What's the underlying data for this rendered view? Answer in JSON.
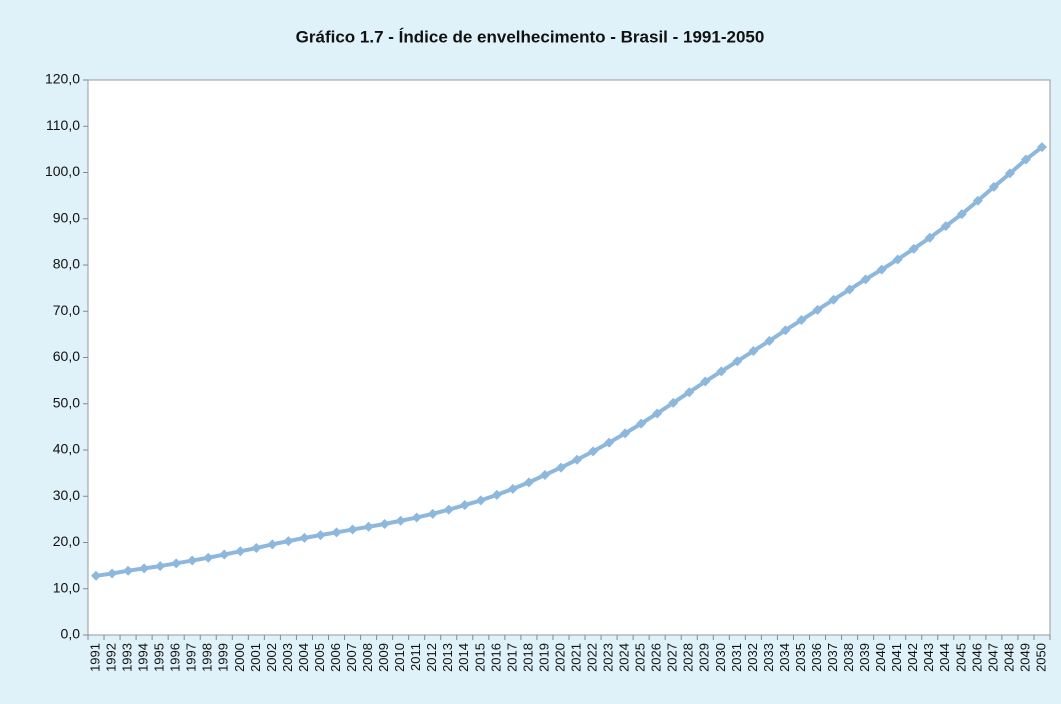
{
  "chart_data": {
    "type": "line",
    "title": "Gráfico 1.7 - Índice de envelhecimento - Brasil - 1991-2050",
    "categories": [
      "1991",
      "1992",
      "1993",
      "1994",
      "1995",
      "1996",
      "1997",
      "1998",
      "1999",
      "2000",
      "2001",
      "2002",
      "2003",
      "2004",
      "2005",
      "2006",
      "2007",
      "2008",
      "2009",
      "2010",
      "2011",
      "2012",
      "2013",
      "2014",
      "2015",
      "2016",
      "2017",
      "2018",
      "2019",
      "2020",
      "2021",
      "2022",
      "2023",
      "2024",
      "2025",
      "2026",
      "2027",
      "2028",
      "2029",
      "2030",
      "2031",
      "2032",
      "2033",
      "2034",
      "2035",
      "2036",
      "2037",
      "2038",
      "2039",
      "2040",
      "2041",
      "2042",
      "2043",
      "2044",
      "2045",
      "2046",
      "2047",
      "2048",
      "2049",
      "2050"
    ],
    "values": [
      12.8,
      13.3,
      13.9,
      14.4,
      14.9,
      15.5,
      16.1,
      16.7,
      17.4,
      18.1,
      18.8,
      19.6,
      20.3,
      21.0,
      21.6,
      22.2,
      22.8,
      23.4,
      24.0,
      24.7,
      25.4,
      26.2,
      27.1,
      28.1,
      29.1,
      30.3,
      31.6,
      33.0,
      34.6,
      36.2,
      37.9,
      39.7,
      41.6,
      43.6,
      45.7,
      47.9,
      50.2,
      52.5,
      54.8,
      57.0,
      59.2,
      61.4,
      63.6,
      65.9,
      68.1,
      70.3,
      72.5,
      74.7,
      76.9,
      79.0,
      81.2,
      83.5,
      85.9,
      88.4,
      91.0,
      93.9,
      96.9,
      99.8,
      102.8,
      105.5
    ],
    "color": "#8db8de",
    "ylim": [
      0,
      120
    ],
    "yticks": [
      {
        "value": 0,
        "label": "0,0"
      },
      {
        "value": 10,
        "label": "10,0"
      },
      {
        "value": 20,
        "label": "20,0"
      },
      {
        "value": 30,
        "label": "30,0"
      },
      {
        "value": 40,
        "label": "40,0"
      },
      {
        "value": 50,
        "label": "50,0"
      },
      {
        "value": 60,
        "label": "60,0"
      },
      {
        "value": 70,
        "label": "70,0"
      },
      {
        "value": 80,
        "label": "80,0"
      },
      {
        "value": 90,
        "label": "90,0"
      },
      {
        "value": 100,
        "label": "100,0"
      },
      {
        "value": 110,
        "label": "110,0"
      },
      {
        "value": 120,
        "label": "120,0"
      }
    ],
    "grid": false
  }
}
